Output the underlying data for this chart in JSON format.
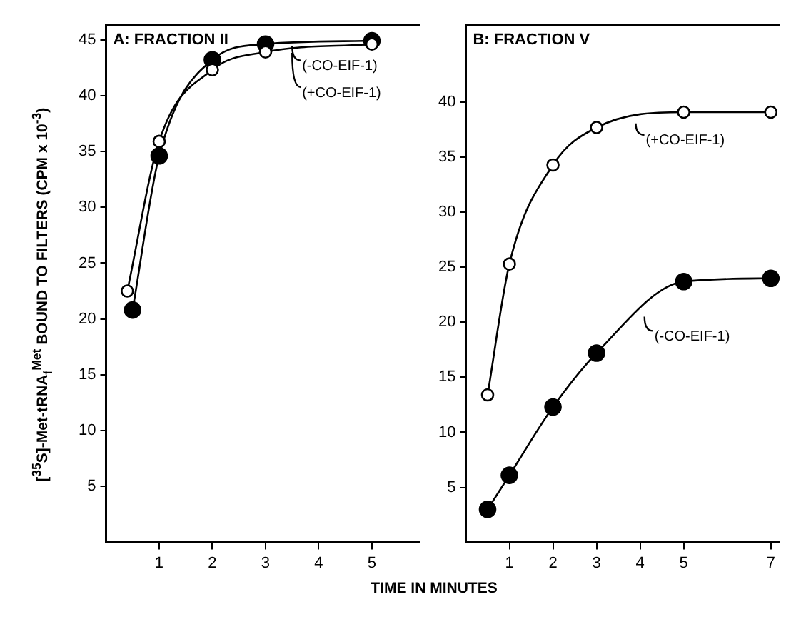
{
  "chart_data": [
    {
      "type": "line",
      "title": "A: FRACTION II",
      "xlabel": "TIME IN MINUTES",
      "ylabel": "[$^{35}$S]-Met-tRNA$_{f}$$^{Met}$ BOUND TO FILTERS (CPM x 10$^{-3}$)",
      "marker": "circle",
      "grid": false,
      "legend": "top right",
      "xlim": [
        0,
        5.9
      ],
      "xticks": [
        1,
        2,
        3,
        4,
        5
      ],
      "ylim": [
        0,
        46.3
      ],
      "yticks": [
        5,
        10,
        15,
        20,
        25,
        30,
        35,
        40,
        45
      ],
      "series": [
        {
          "name": "(+CO-EIF-1)",
          "color": "#000000",
          "x": [
            0.4,
            1,
            2,
            3,
            5
          ],
          "values": [
            22.5,
            35.9,
            42.3,
            43.9,
            44.6
          ]
        },
        {
          "name": "(-CO-EIF-1)",
          "color": "#000000",
          "x": [
            0.5,
            1,
            2,
            3,
            5
          ],
          "values": [
            20.8,
            34.6,
            43.2,
            44.6,
            44.9
          ]
        }
      ]
    },
    {
      "type": "line",
      "title": "B: FRACTION V",
      "marker": "circle",
      "grid": false,
      "legend": "right",
      "xlim": [
        0,
        7.2
      ],
      "xticks": [
        1,
        2,
        3,
        4,
        5,
        7
      ],
      "ylim": [
        0,
        47
      ],
      "yticks": [
        5,
        10,
        15,
        20,
        25,
        30,
        35,
        40
      ],
      "series": [
        {
          "name": "(+CO-EIF-1)",
          "color": "#000000",
          "x": [
            0.5,
            1,
            2,
            3,
            5,
            7
          ],
          "values": [
            13.4,
            25.3,
            34.3,
            37.7,
            39.1,
            39.1
          ]
        },
        {
          "name": "(-CO-EIF-1)",
          "color": "#000000",
          "x": [
            0.5,
            1,
            2,
            3,
            5,
            7
          ],
          "values": [
            3.0,
            6.1,
            12.3,
            17.2,
            23.7,
            24.0
          ]
        }
      ]
    }
  ]
}
